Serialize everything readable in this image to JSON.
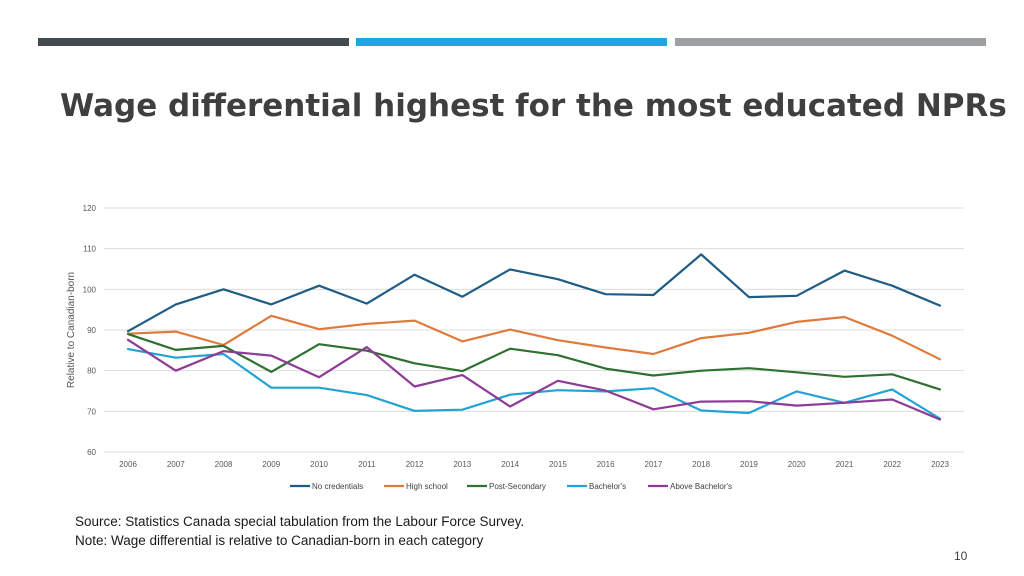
{
  "header": {
    "bars": [
      {
        "color": "#444a4e"
      },
      {
        "color": "#1ea6de"
      },
      {
        "color": "#9da0a3"
      }
    ]
  },
  "slide": {
    "title": "Wage differential highest for the most educated NPRs",
    "source_note": "Source: Statistics Canada special tabulation from the Labour Force Survey.",
    "note": "Note: Wage differential is relative to Canadian-born in each category",
    "page_number": "10"
  },
  "chart_data": {
    "type": "line",
    "title": "",
    "xlabel": "",
    "ylabel": "Relative to Canadian-born",
    "ylim": [
      60,
      120
    ],
    "yticks": [
      60,
      70,
      80,
      90,
      100,
      110,
      120
    ],
    "grid": true,
    "legend_position": "bottom",
    "categories": [
      "2006",
      "2007",
      "2008",
      "2009",
      "2010",
      "2011",
      "2012",
      "2013",
      "2014",
      "2015",
      "2016",
      "2017",
      "2018",
      "2019",
      "2020",
      "2021",
      "2022",
      "2023"
    ],
    "series": [
      {
        "name": "No credentials",
        "color": "#1f5c86",
        "values": [
          89.7,
          96.3,
          100.0,
          96.3,
          100.9,
          96.5,
          103.6,
          98.2,
          104.9,
          102.5,
          98.8,
          98.6,
          108.6,
          98.1,
          98.4,
          104.6,
          100.9,
          96.0
        ]
      },
      {
        "name": "High school",
        "color": "#e07a3b",
        "values": [
          89.1,
          89.6,
          86.3,
          93.5,
          90.2,
          91.5,
          92.3,
          87.2,
          90.1,
          87.5,
          85.7,
          84.1,
          88.0,
          89.3,
          92.0,
          93.2,
          88.6,
          82.8
        ]
      },
      {
        "name": "Post-Secondary",
        "color": "#2e7131",
        "values": [
          89.0,
          85.1,
          86.1,
          79.7,
          86.5,
          84.9,
          81.8,
          79.9,
          85.4,
          83.8,
          80.5,
          78.8,
          80.0,
          80.6,
          79.6,
          78.5,
          79.1,
          75.4
        ]
      },
      {
        "name": "Bachelor's",
        "color": "#23a3d4",
        "values": [
          85.3,
          83.2,
          84.1,
          75.8,
          75.8,
          74.0,
          70.1,
          70.4,
          74.1,
          75.2,
          74.9,
          75.7,
          70.2,
          69.6,
          74.9,
          72.1,
          75.4,
          68.2
        ]
      },
      {
        "name": "Above Bachelor's",
        "color": "#8e3b96",
        "values": [
          87.6,
          80.0,
          84.8,
          83.7,
          78.4,
          85.8,
          76.1,
          78.9,
          71.2,
          77.5,
          75.1,
          70.5,
          72.4,
          72.5,
          71.4,
          72.1,
          72.9,
          68.0
        ]
      }
    ]
  }
}
